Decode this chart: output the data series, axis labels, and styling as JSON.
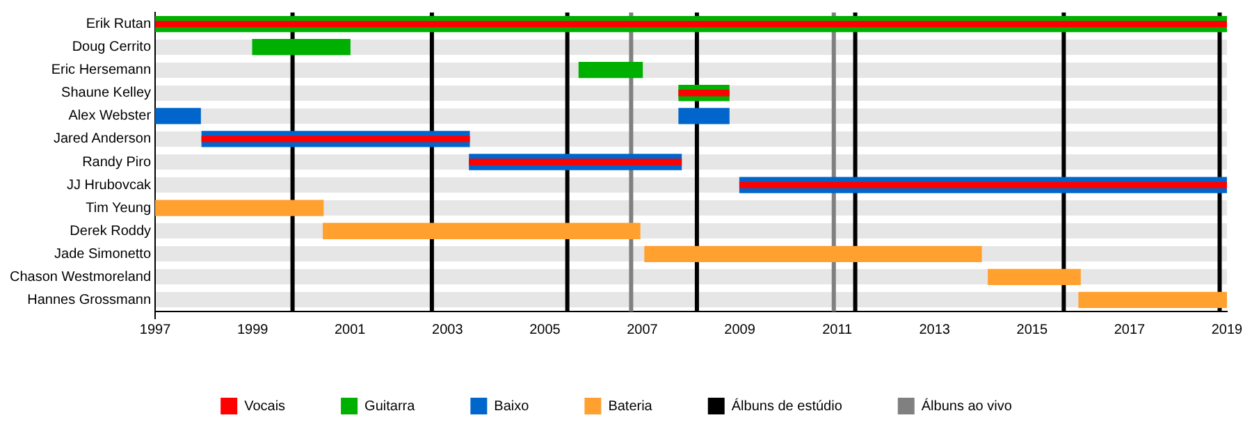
{
  "chart_data": {
    "type": "bar",
    "orientation": "horizontal",
    "categories": [
      "Erik Rutan",
      "Doug Cerrito",
      "Eric Hersemann",
      "Shaune Kelley",
      "Alex Webster",
      "Jared Anderson",
      "Randy Piro",
      "JJ Hrubovcak",
      "Tim Yeung",
      "Derek Roddy",
      "Jade Simonetto",
      "Chason Westmoreland",
      "Hannes Grossmann"
    ],
    "series": [
      {
        "name": "Vocais",
        "color": "#ff0000",
        "base": [
          1997,
          null,
          null,
          2007.75,
          null,
          1997.96,
          2003.45,
          2009,
          null,
          null,
          null,
          null,
          null
        ],
        "values": [
          22,
          null,
          null,
          1.03,
          null,
          5.49,
          4.35,
          10,
          null,
          null,
          null,
          null,
          null
        ]
      },
      {
        "name": "Guitarra",
        "color": "#00b000",
        "base": [
          1997,
          1999,
          2005.7,
          2007.75,
          null,
          null,
          null,
          null,
          null,
          null,
          null,
          null,
          null
        ],
        "values": [
          22,
          2,
          1.3,
          1.03,
          null,
          null,
          null,
          null,
          null,
          null,
          null,
          null,
          null
        ]
      },
      {
        "name": "Baixo",
        "color": "#0066cc",
        "base": [
          null,
          null,
          null,
          null,
          1997,
          1997.96,
          2003.45,
          2009,
          null,
          null,
          null,
          null,
          null
        ],
        "values": [
          null,
          null,
          null,
          null,
          0.93,
          5.49,
          4.35,
          10,
          null,
          null,
          null,
          null,
          null
        ]
      },
      {
        "color": "#0066cc",
        "base": [
          null,
          null,
          null,
          null,
          2007.75,
          null,
          null,
          null,
          null,
          null,
          null,
          null,
          null
        ],
        "values": [
          null,
          null,
          null,
          null,
          1.03,
          null,
          null,
          null,
          null,
          null,
          null,
          null,
          null
        ]
      },
      {
        "name": "Bateria",
        "color": "#ffa02f",
        "base": [
          null,
          null,
          null,
          null,
          null,
          null,
          null,
          null,
          1997,
          2000.45,
          2007.05,
          2014.1,
          2015.96
        ],
        "values": [
          null,
          null,
          null,
          null,
          null,
          null,
          null,
          null,
          3.45,
          6.5,
          6.91,
          1.89,
          3.04
        ]
      }
    ],
    "xlim": [
      1997,
      2019
    ],
    "xticks": [
      1997,
      1999,
      2001,
      2003,
      2005,
      2007,
      2009,
      2011,
      2013,
      2015,
      2017,
      2019
    ],
    "grid": "y",
    "ref_lines": [
      {
        "axis": "x",
        "value": 1999.82,
        "label": "Álbuns de estúdio",
        "color": "#000000"
      },
      {
        "axis": "x",
        "value": 2002.68,
        "color": "#000000"
      },
      {
        "axis": "x",
        "value": 2005.46,
        "color": "#000000"
      },
      {
        "axis": "x",
        "value": 2008.12,
        "color": "#000000"
      },
      {
        "axis": "x",
        "value": 2011.37,
        "color": "#000000"
      },
      {
        "axis": "x",
        "value": 2015.65,
        "color": "#000000"
      },
      {
        "axis": "x",
        "value": 2018.85,
        "color": "#000000"
      },
      {
        "axis": "x",
        "value": 2006.77,
        "label": "Álbuns ao vivo",
        "color": "#808080"
      },
      {
        "axis": "x",
        "value": 2010.93,
        "color": "#808080"
      }
    ],
    "legend": "bottom"
  }
}
